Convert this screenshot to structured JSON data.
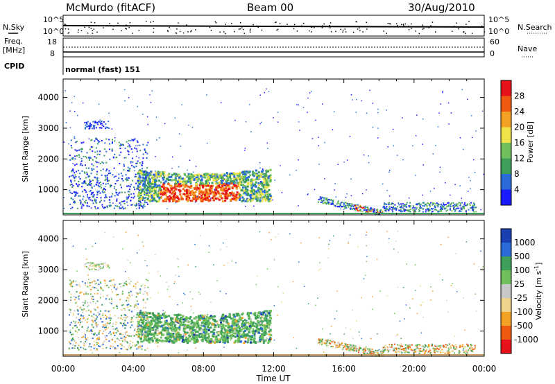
{
  "header": {
    "station": "McMurdo (fitACF)",
    "beam": "Beam 00",
    "date": "30/Aug/2010"
  },
  "panels": {
    "nsky_label": "N.Sky",
    "nsky_ticks": [
      "10^5",
      "10^0"
    ],
    "nsearch_label": "N.Search",
    "nsearch_ticks": [
      "10^5",
      "10^0"
    ],
    "freq_label_1": "Freq.",
    "freq_label_2": "[MHz]",
    "freq_ticks": [
      "18",
      "8"
    ],
    "nave_label": "Nave",
    "nave_ticks": [
      "60",
      "0"
    ],
    "cpid_label": "CPID",
    "cpid_value": "normal (fast) 151"
  },
  "colors": {
    "power": [
      "#1a1aff",
      "#2b6bd9",
      "#3e9f5a",
      "#6fc05c",
      "#f0e34a",
      "#f4a226",
      "#ef5a12",
      "#e8131a"
    ],
    "velocity": [
      "#e8131a",
      "#ef5a12",
      "#f4a226",
      "#f0d38a",
      "#c8c8c8",
      "#6fc05c",
      "#3e9f5a",
      "#2b6bd9",
      "#1a3fb0"
    ]
  },
  "chart_data": [
    {
      "type": "heatmap",
      "title": "",
      "ylabel": "Slant Range [km]",
      "xlabel": "",
      "colorbar_label": "Power [dB]",
      "colorbar_ticks": [
        "28",
        "24",
        "20",
        "16",
        "12",
        "8",
        "4"
      ],
      "ylim": [
        180,
        4600
      ],
      "y_ticks": [
        "4000",
        "3000",
        "2000",
        "1000"
      ],
      "features": [
        {
          "t0": 4.2,
          "t1": 11.8,
          "r0": 700,
          "r1": 1700,
          "level": "strong"
        },
        {
          "t0": 6.0,
          "t1": 9.5,
          "r0": 650,
          "r1": 1400,
          "level": "peak"
        },
        {
          "t0": 0.5,
          "t1": 4.0,
          "r0": 400,
          "r1": 2500,
          "level": "weak"
        },
        {
          "t0": 15.5,
          "t1": 18.2,
          "r0": 250,
          "r1": 650,
          "level": "moderate"
        }
      ]
    },
    {
      "type": "heatmap",
      "title": "",
      "ylabel": "Slant Range [km]",
      "xlabel": "Time UT",
      "colorbar_label": "Velocity [m s^-1]",
      "colorbar_ticks": [
        "1000",
        "500",
        "100",
        "25",
        "-25",
        "-100",
        "-500",
        "-1000"
      ],
      "ylim": [
        180,
        4600
      ],
      "y_ticks": [
        "4000",
        "3000",
        "2000",
        "1000"
      ],
      "x_ticks": [
        "00:00",
        "04:00",
        "08:00",
        "12:00",
        "16:00",
        "20:00",
        "00:00"
      ],
      "xlim_hours": [
        0,
        24
      ]
    }
  ],
  "time_axis": {
    "ticks": [
      "00:00",
      "04:00",
      "08:00",
      "12:00",
      "16:00",
      "20:00",
      "00:00"
    ],
    "label": "Time UT"
  },
  "units": {
    "velocity_unit_1": "Velocity [m s",
    "velocity_unit_sup": "-1",
    "velocity_unit_2": "]"
  }
}
